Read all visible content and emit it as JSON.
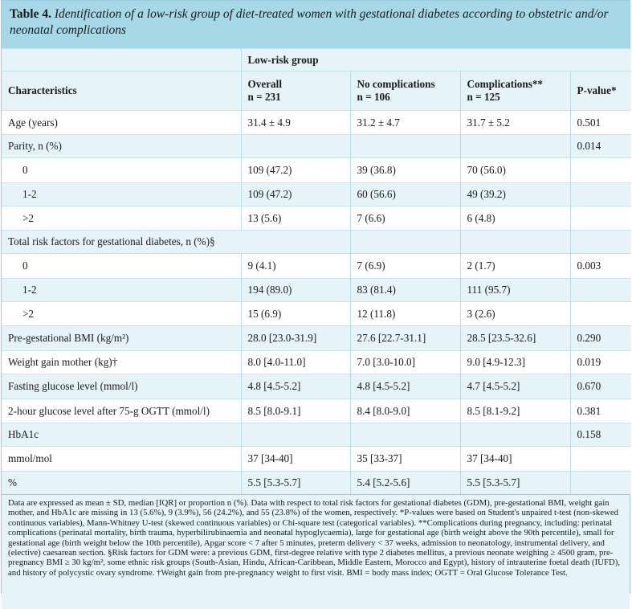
{
  "title": {
    "label": "Table 4.",
    "text": "Identification of a low-risk group of diet-treated women with gestational diabetes according to obstetric and/or neonatal complications"
  },
  "header": {
    "group_label": "Low-risk group",
    "columns": [
      {
        "label": "Characteristics",
        "n": ""
      },
      {
        "label": "Overall",
        "n": "n = 231"
      },
      {
        "label": "No complications",
        "n": "n = 106"
      },
      {
        "label": "Complications**",
        "n": "n = 125"
      },
      {
        "label": "P-value*",
        "n": ""
      }
    ]
  },
  "rows": [
    {
      "label": "Age (years)",
      "overall": "31.4 ± 4.9",
      "none": "31.2 ± 4.7",
      "comp": "31.7 ± 5.2",
      "p": "0.501",
      "indent": false
    },
    {
      "label": "Parity, n (%)",
      "overall": "",
      "none": "",
      "comp": "",
      "p": "0.014",
      "indent": false
    },
    {
      "label": "0",
      "overall": "109 (47.2)",
      "none": "39 (36.8)",
      "comp": "70 (56.0)",
      "p": "",
      "indent": true
    },
    {
      "label": "1-2",
      "overall": "109 (47.2)",
      "none": "60 (56.6)",
      "comp": "49 (39.2)",
      "p": "",
      "indent": true
    },
    {
      "label": ">2",
      "overall": "13 (5.6)",
      "none": "7 (6.6)",
      "comp": "6 (4.8)",
      "p": "",
      "indent": true
    },
    {
      "label": "Total risk factors for gestational diabetes, n (%)§",
      "overall": "",
      "none": "",
      "comp": "",
      "p": "",
      "indent": false,
      "span": true
    },
    {
      "label": "0",
      "overall": "9 (4.1)",
      "none": "7 (6.9)",
      "comp": "2 (1.7)",
      "p": "0.003",
      "indent": true
    },
    {
      "label": "1-2",
      "overall": "194 (89.0)",
      "none": "83 (81.4)",
      "comp": "111 (95.7)",
      "p": "",
      "indent": true
    },
    {
      "label": ">2",
      "overall": "15 (6.9)",
      "none": "12 (11.8)",
      "comp": "3 (2.6)",
      "p": "",
      "indent": true
    },
    {
      "label": "Pre-gestational BMI (kg/m²)",
      "overall": "28.0 [23.0-31.9]",
      "none": "27.6 [22.7-31.1]",
      "comp": "28.5 [23.5-32.6]",
      "p": "0.290",
      "indent": false
    },
    {
      "label": "Weight gain mother (kg)†",
      "overall": "8.0 [4.0-11.0]",
      "none": "7.0 [3.0-10.0]",
      "comp": "9.0 [4.9-12.3]",
      "p": "0.019",
      "indent": false
    },
    {
      "label": "Fasting glucose level (mmol/l)",
      "overall": "4.8 [4.5-5.2]",
      "none": "4.8 [4.5-5.2]",
      "comp": "4.7 [4.5-5.2]",
      "p": "0.670",
      "indent": false
    },
    {
      "label": "2-hour glucose level after 75-g OGTT (mmol/l)",
      "overall": "8.5 [8.0-9.1]",
      "none": "8.4 [8.0-9.0]",
      "comp": "8.5 [8.1-9.2]",
      "p": "0.381",
      "indent": false
    },
    {
      "label": "HbA1c",
      "overall": "",
      "none": "",
      "comp": "",
      "p": "0.158",
      "indent": false
    },
    {
      "label": "mmol/mol",
      "overall": "37 [34-40]",
      "none": "35 [33-37]",
      "comp": "37 [34-40]",
      "p": "",
      "indent": false
    },
    {
      "label": "%",
      "overall": "5.5 [5.3-5.7]",
      "none": "5.4 [5.2-5.6]",
      "comp": "5.5 [5.3-5.7]",
      "p": "",
      "indent": false
    }
  ],
  "footnote": "Data are expressed as mean ± SD, median [IQR] or proportion n (%). Data with respect to total risk factors for gestational diabetes (GDM), pre-gestational BMI, weight gain mother, and HbA1c are missing in 13 (5.6%), 9 (3.9%), 56 (24.2%), and 55 (23.8%) of the women, respectively. *P-values were based on Student's unpaired t-test (non-skewed continuous variables), Mann-Whitney U-test (skewed continuous variables) or Chi-square test (categorical variables). **Complications during pregnancy, including: perinatal complications (perinatal mortality, birth trauma, hyperbilirubinaemia and neonatal hypoglycaemia), large for gestational age (birth weight above the 90th percentile), small for gestational age (birth weight below the 10th percentile), Apgar score < 7 after 5 minutes, preterm delivery < 37 weeks, admission to neonatology, instrumental delivery, and (elective) caesarean section. §Risk factors for GDM were: a previous GDM, first-degree relative with type 2 diabetes mellitus, a previous neonate weighing ≥ 4500 gram, pre-pregnancy BMI ≥ 30 kg/m², some ethnic risk groups (South-Asian, Hindu, African-Caribbean, Middle Eastern, Morocco and Egypt), history of intrauterine foetal death (IUFD), and history of polycystic ovary syndrome. †Weight gain from pre-pregnancy weight to first visit. BMI = body mass index; OGTT = Oral Glucose Tolerance Test."
}
